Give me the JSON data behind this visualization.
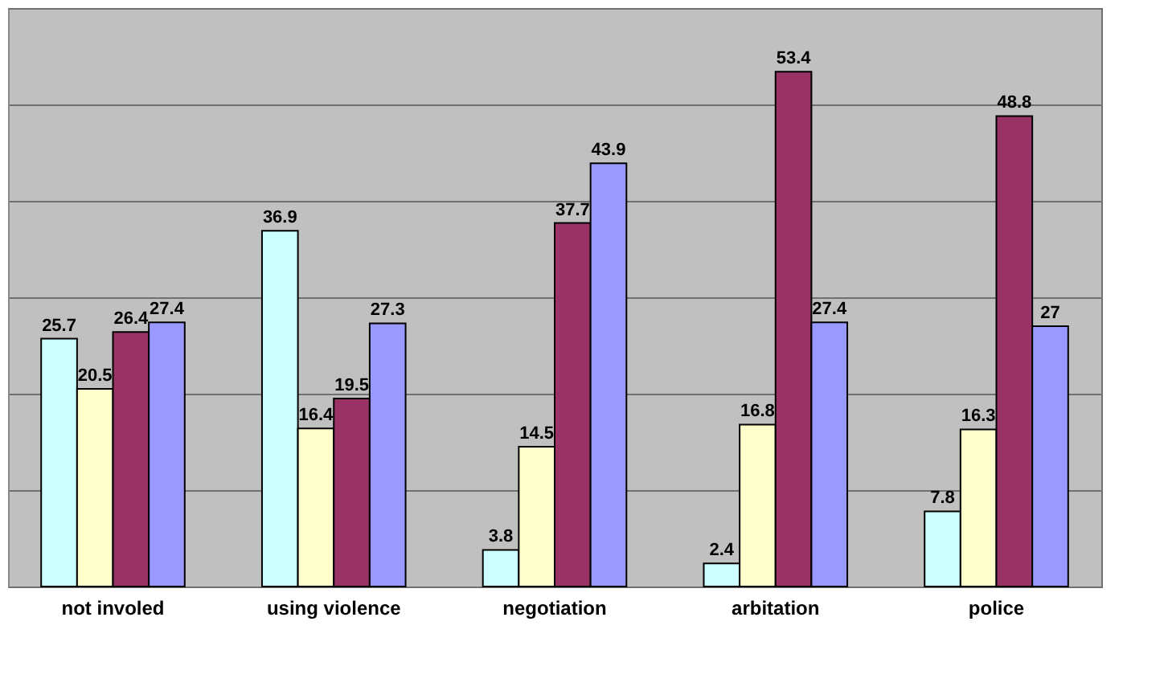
{
  "chart_data": {
    "type": "bar",
    "categories": [
      "not involed",
      "using violence",
      "negotiation",
      "arbitation",
      "police"
    ],
    "series": [
      {
        "color": "#ccffff",
        "values": [
          25.7,
          36.9,
          3.8,
          2.4,
          7.8
        ]
      },
      {
        "color": "#ffffcc",
        "values": [
          20.5,
          16.4,
          14.5,
          16.8,
          16.3
        ]
      },
      {
        "color": "#993366",
        "values": [
          26.4,
          19.5,
          37.7,
          53.4,
          48.8
        ]
      },
      {
        "color": "#9999ff",
        "values": [
          27.4,
          27.3,
          43.9,
          27.4,
          27
        ]
      }
    ],
    "ylim": [
      0,
      60
    ],
    "yticks": [
      {
        "value": 0,
        "label": null
      },
      {
        "value": 10,
        "label": null
      },
      {
        "value": 20,
        "label": null
      },
      {
        "value": 30,
        "label": null
      },
      {
        "value": 40,
        "label": null
      },
      {
        "value": 50,
        "label": null
      },
      {
        "value": 60,
        "label": null
      }
    ],
    "grid": "y",
    "data_labels": true,
    "tick_labels": "x"
  }
}
